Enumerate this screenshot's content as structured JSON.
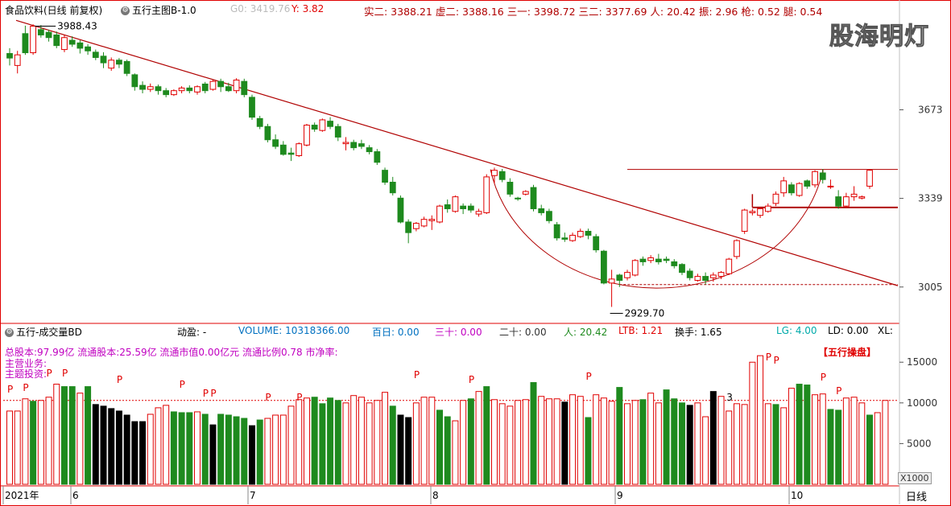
{
  "header": {
    "title": "食品饮料(日线 前复权)",
    "indicator": "五行主图B-1.0",
    "g0": "G0: 3419.76",
    "y": "Y: 3.82",
    "stats": "实二: 3388.21  虚二: 3388.16  三一: 3398.72  三二: 3377.69  人: 20.42  振: 2.96  枪: 0.52  腿: 0.54"
  },
  "watermark": "股海明灯",
  "price_axis": {
    "ticks": [
      "3673",
      "3339",
      "3005"
    ]
  },
  "annotations": {
    "high": "3988.43",
    "low": "2929.70"
  },
  "volume_header": {
    "indicator": "五行-成交量BD",
    "dongying": "动盈: -",
    "volume": "VOLUME: 10318366.00",
    "baiyi": "百日: 0.00",
    "sanshi": "三十: 0.00",
    "ershi": "二十: 0.00",
    "ren": "人: 20.42",
    "ltb": "LTB: 1.21",
    "huanshou": "换手: 1.65",
    "lg": "LG: 4.00",
    "ld": "LD: 0.00",
    "xl": "XL:"
  },
  "info_lines": [
    "总股本:97.99亿 流通股本:25.59亿 流通市值0.00亿元 流通比例0.78  市净率:",
    "主营业务:",
    "主题投资:"
  ],
  "wuxing_label": "【五行操盘】",
  "volume_axis": {
    "ticks": [
      "15000",
      "10000",
      "5000"
    ],
    "multiplier": "X1000"
  },
  "volume_marker": "3",
  "p_marker": "P",
  "time_axis": {
    "labels": [
      "2021年",
      "6",
      "7",
      "8",
      "9",
      "10"
    ]
  },
  "period_label": "日线",
  "colors": {
    "up": "#e00000",
    "down": "#1e8a1e",
    "black": "#000000",
    "trend": "#b00000"
  },
  "chart_data": {
    "type": "candlestick",
    "title": "食品饮料(日线 前复权)",
    "price_range": [
      2880,
      4020
    ],
    "candles": [
      [
        3868,
        3885,
        3840,
        3905,
        "down"
      ],
      [
        3840,
        3880,
        3810,
        3895,
        "up"
      ],
      [
        3960,
        3888,
        3880,
        3990,
        "down"
      ],
      [
        3888,
        3988,
        3880,
        3995,
        "up"
      ],
      [
        3975,
        3955,
        3945,
        3992,
        "down"
      ],
      [
        3965,
        3945,
        3930,
        3975,
        "down"
      ],
      [
        3955,
        3915,
        3905,
        3968,
        "down"
      ],
      [
        3900,
        3945,
        3890,
        3955,
        "up"
      ],
      [
        3935,
        3920,
        3910,
        3950,
        "down"
      ],
      [
        3925,
        3905,
        3885,
        3935,
        "down"
      ],
      [
        3910,
        3895,
        3880,
        3920,
        "down"
      ],
      [
        3890,
        3870,
        3860,
        3900,
        "down"
      ],
      [
        3875,
        3850,
        3830,
        3890,
        "down"
      ],
      [
        3830,
        3860,
        3820,
        3870,
        "up"
      ],
      [
        3860,
        3845,
        3830,
        3868,
        "down"
      ],
      [
        3855,
        3810,
        3800,
        3862,
        "down"
      ],
      [
        3805,
        3760,
        3745,
        3810,
        "down"
      ],
      [
        3765,
        3750,
        3735,
        3780,
        "down"
      ],
      [
        3750,
        3760,
        3740,
        3772,
        "up"
      ],
      [
        3760,
        3745,
        3730,
        3768,
        "down"
      ],
      [
        3745,
        3730,
        3720,
        3755,
        "down"
      ],
      [
        3730,
        3745,
        3725,
        3750,
        "up"
      ],
      [
        3745,
        3755,
        3735,
        3762,
        "up"
      ],
      [
        3755,
        3745,
        3735,
        3765,
        "down"
      ],
      [
        3740,
        3760,
        3730,
        3765,
        "up"
      ],
      [
        3770,
        3745,
        3735,
        3778,
        "down"
      ],
      [
        3750,
        3780,
        3745,
        3785,
        "up"
      ],
      [
        3780,
        3760,
        3740,
        3790,
        "down"
      ],
      [
        3760,
        3745,
        3740,
        3775,
        "down"
      ],
      [
        3745,
        3785,
        3735,
        3792,
        "up"
      ],
      [
        3780,
        3730,
        3720,
        3790,
        "down"
      ],
      [
        3720,
        3645,
        3635,
        3730,
        "down"
      ],
      [
        3640,
        3610,
        3600,
        3650,
        "down"
      ],
      [
        3610,
        3560,
        3550,
        3620,
        "down"
      ],
      [
        3560,
        3535,
        3525,
        3580,
        "down"
      ],
      [
        3540,
        3505,
        3500,
        3555,
        "down"
      ],
      [
        3505,
        3510,
        3480,
        3530,
        "down"
      ],
      [
        3500,
        3545,
        3495,
        3550,
        "up"
      ],
      [
        3540,
        3615,
        3535,
        3620,
        "up"
      ],
      [
        3615,
        3600,
        3590,
        3625,
        "down"
      ],
      [
        3595,
        3635,
        3590,
        3640,
        "up"
      ],
      [
        3630,
        3610,
        3600,
        3645,
        "down"
      ],
      [
        3610,
        3570,
        3555,
        3620,
        "down"
      ],
      [
        3545,
        3550,
        3520,
        3570,
        "up"
      ],
      [
        3550,
        3530,
        3520,
        3560,
        "down"
      ],
      [
        3545,
        3535,
        3525,
        3560,
        "down"
      ],
      [
        3530,
        3515,
        3505,
        3540,
        "down"
      ],
      [
        3515,
        3475,
        3465,
        3525,
        "down"
      ],
      [
        3445,
        3400,
        3390,
        3455,
        "down"
      ],
      [
        3400,
        3360,
        3350,
        3420,
        "down"
      ],
      [
        3340,
        3250,
        3245,
        3350,
        "down"
      ],
      [
        3250,
        3210,
        3170,
        3260,
        "down"
      ],
      [
        3225,
        3245,
        3215,
        3250,
        "up"
      ],
      [
        3235,
        3260,
        3230,
        3270,
        "up"
      ],
      [
        3255,
        3260,
        3220,
        3275,
        "up"
      ],
      [
        3250,
        3310,
        3245,
        3315,
        "up"
      ],
      [
        3315,
        3300,
        3285,
        3335,
        "down"
      ],
      [
        3290,
        3345,
        3285,
        3350,
        "up"
      ],
      [
        3310,
        3300,
        3280,
        3320,
        "down"
      ],
      [
        3310,
        3295,
        3285,
        3320,
        "down"
      ],
      [
        3280,
        3290,
        3270,
        3300,
        "up"
      ],
      [
        3285,
        3420,
        3280,
        3430,
        "up"
      ],
      [
        3425,
        3445,
        3395,
        3455,
        "up"
      ],
      [
        3440,
        3410,
        3400,
        3450,
        "down"
      ],
      [
        3400,
        3355,
        3345,
        3415,
        "down"
      ],
      [
        3340,
        3340,
        3330,
        3345,
        "down"
      ],
      [
        3355,
        3365,
        3350,
        3370,
        "up"
      ],
      [
        3380,
        3300,
        3290,
        3390,
        "down"
      ],
      [
        3300,
        3285,
        3275,
        3315,
        "down"
      ],
      [
        3290,
        3255,
        3245,
        3300,
        "down"
      ],
      [
        3240,
        3190,
        3180,
        3250,
        "down"
      ],
      [
        3190,
        3185,
        3175,
        3210,
        "down"
      ],
      [
        3180,
        3200,
        3175,
        3210,
        "up"
      ],
      [
        3195,
        3215,
        3190,
        3225,
        "up"
      ],
      [
        3215,
        3200,
        3185,
        3225,
        "down"
      ],
      [
        3195,
        3145,
        3135,
        3205,
        "down"
      ],
      [
        3140,
        3020,
        3015,
        3145,
        "down"
      ],
      [
        3020,
        3035,
        2930,
        3070,
        "up"
      ],
      [
        3030,
        3050,
        3005,
        3055,
        "down"
      ],
      [
        3040,
        3060,
        3030,
        3070,
        "up"
      ],
      [
        3050,
        3105,
        3045,
        3110,
        "up"
      ],
      [
        3110,
        3100,
        3085,
        3120,
        "down"
      ],
      [
        3105,
        3115,
        3095,
        3125,
        "up"
      ],
      [
        3110,
        3100,
        3090,
        3130,
        "down"
      ],
      [
        3110,
        3105,
        3095,
        3120,
        "down"
      ],
      [
        3100,
        3085,
        3075,
        3110,
        "down"
      ],
      [
        3090,
        3060,
        3050,
        3095,
        "down"
      ],
      [
        3065,
        3040,
        3030,
        3075,
        "down"
      ],
      [
        3030,
        3045,
        3025,
        3055,
        "up"
      ],
      [
        3045,
        3030,
        3015,
        3060,
        "down"
      ],
      [
        3040,
        3050,
        3025,
        3060,
        "up"
      ],
      [
        3045,
        3060,
        3035,
        3065,
        "up"
      ],
      [
        3055,
        3110,
        3050,
        3115,
        "up"
      ],
      [
        3120,
        3180,
        3110,
        3185,
        "up"
      ],
      [
        3215,
        3295,
        3205,
        3300,
        "up"
      ],
      [
        3285,
        3290,
        3275,
        3300,
        "up"
      ],
      [
        3275,
        3300,
        3265,
        3305,
        "up"
      ],
      [
        3290,
        3310,
        3285,
        3320,
        "up"
      ],
      [
        3320,
        3355,
        3310,
        3365,
        "up"
      ],
      [
        3360,
        3405,
        3345,
        3420,
        "up"
      ],
      [
        3390,
        3360,
        3350,
        3400,
        "down"
      ],
      [
        3350,
        3395,
        3345,
        3400,
        "up"
      ],
      [
        3405,
        3385,
        3375,
        3410,
        "down"
      ],
      [
        3390,
        3440,
        3380,
        3445,
        "up"
      ],
      [
        3435,
        3410,
        3395,
        3450,
        "down"
      ],
      [
        3385,
        3385,
        3375,
        3410,
        "up"
      ],
      [
        3345,
        3310,
        3300,
        3370,
        "down"
      ],
      [
        3310,
        3345,
        3305,
        3360,
        "up"
      ],
      [
        3345,
        3355,
        3330,
        3385,
        "up"
      ],
      [
        3345,
        3340,
        3335,
        3350,
        "up"
      ],
      [
        3385,
        3445,
        3375,
        3450,
        "up"
      ]
    ],
    "volume": {
      "ylim": [
        0,
        17000
      ],
      "values": [
        9000,
        9000,
        10500,
        10200,
        10300,
        10700,
        12300,
        12000,
        12000,
        11200,
        12000,
        9800,
        9600,
        9300,
        9000,
        8500,
        7700,
        7700,
        8600,
        9400,
        9700,
        8900,
        8800,
        8800,
        8900,
        8600,
        7300,
        8600,
        8500,
        8300,
        8100,
        7200,
        7900,
        8100,
        8500,
        8500,
        9600,
        10400,
        10600,
        10700,
        9900,
        10600,
        10300,
        10000,
        10900,
        10700,
        10000,
        10300,
        11300,
        9600,
        8500,
        8200,
        10000,
        10700,
        10700,
        9100,
        8300,
        7800,
        10300,
        10500,
        11400,
        12000,
        10400,
        9900,
        9600,
        10300,
        10400,
        12500,
        10800,
        10500,
        10500,
        10100,
        11000,
        10800,
        8200,
        11000,
        10600,
        10200,
        11900,
        9900,
        10300,
        10400,
        11200,
        10000,
        11600,
        10500,
        10000,
        9700,
        10000,
        8300,
        11400,
        10800,
        9000,
        9900,
        9800,
        15000,
        15800,
        9900,
        9800,
        9400,
        11800,
        12300,
        12200,
        11000,
        11100,
        9200,
        9100,
        10600,
        10700,
        10000,
        8500,
        8800,
        10300
      ],
      "colors": [
        "up",
        "up",
        "up",
        "down",
        "up",
        "up",
        "up",
        "down",
        "down",
        "up",
        "down",
        "black",
        "black",
        "black",
        "black",
        "black",
        "black",
        "black",
        "up",
        "up",
        "up",
        "down",
        "down",
        "down",
        "up",
        "down",
        "black",
        "down",
        "down",
        "down",
        "down",
        "black",
        "down",
        "up",
        "up",
        "up",
        "up",
        "up",
        "up",
        "down",
        "down",
        "down",
        "down",
        "up",
        "up",
        "up",
        "up",
        "up",
        "up",
        "down",
        "black",
        "black",
        "up",
        "up",
        "up",
        "down",
        "down",
        "up",
        "up",
        "down",
        "up",
        "down",
        "up",
        "up",
        "up",
        "up",
        "up",
        "down",
        "up",
        "up",
        "up",
        "black",
        "up",
        "up",
        "down",
        "up",
        "up",
        "up",
        "down",
        "up",
        "up",
        "down",
        "up",
        "up",
        "down",
        "down",
        "down",
        "black",
        "up",
        "up",
        "black",
        "up",
        "up",
        "up",
        "up",
        "up",
        "up",
        "up",
        "down",
        "up",
        "up",
        "down",
        "down",
        "up",
        "up",
        "down",
        "down",
        "up",
        "up",
        "up",
        "down",
        "up",
        "up"
      ],
      "dashed_level": 10300
    }
  }
}
